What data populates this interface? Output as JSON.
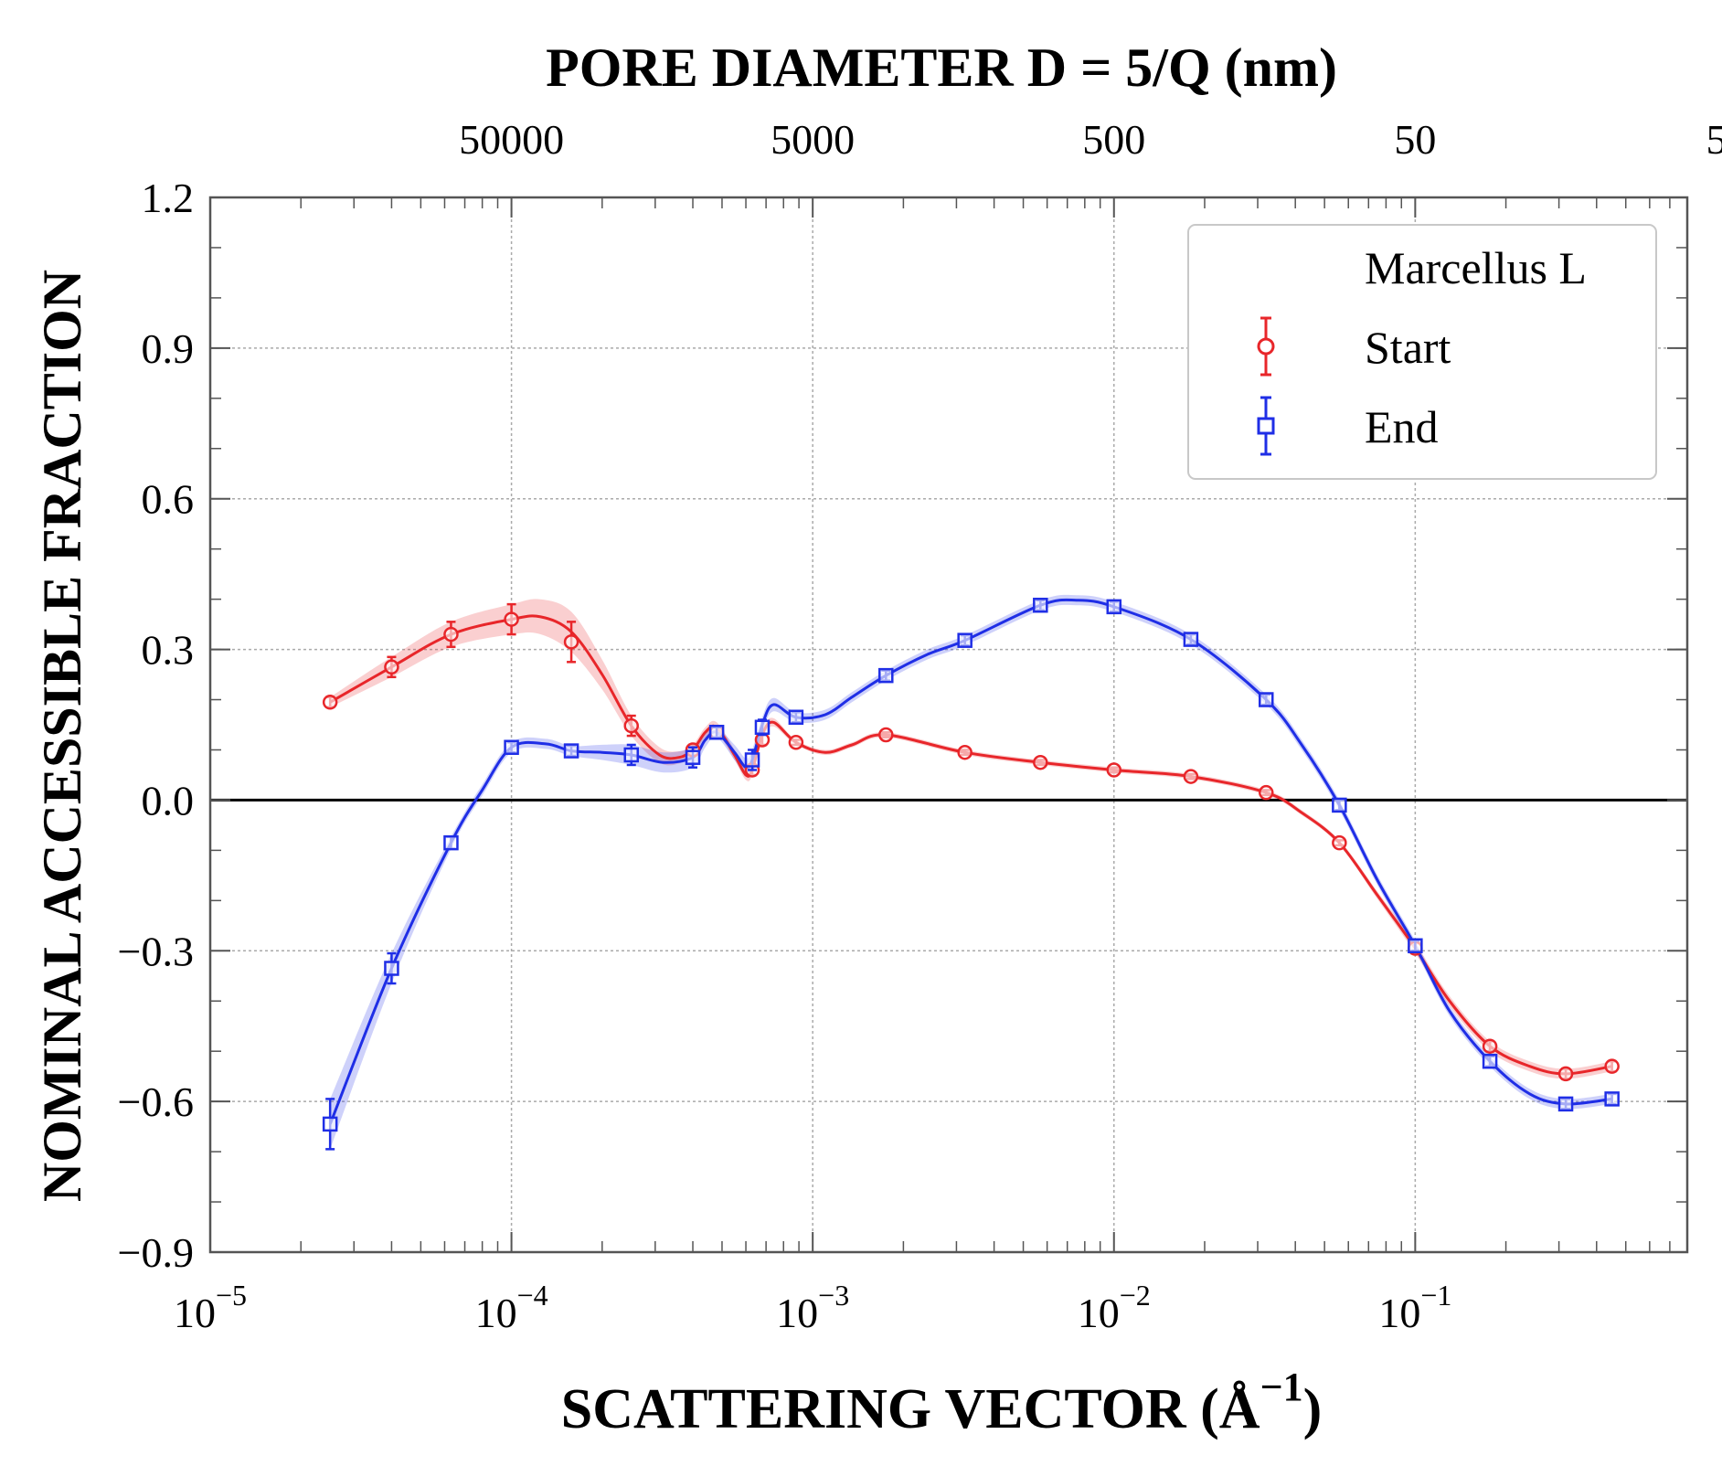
{
  "chart_data": {
    "type": "line",
    "top_title": "PORE DIAMETER D = 5/Q (nm)",
    "ylabel": "NOMINAL ACCESSIBLE FRACTION",
    "xlabel": "SCATTERING VECTOR (Å",
    "xlabel_exponent": "−1",
    "xlabel_close": ")",
    "xscale": "log",
    "xlim": [
      1e-05,
      0.8
    ],
    "ylim": [
      -0.9,
      1.2
    ],
    "x_ticks": [
      {
        "value": 1e-05,
        "base": "10",
        "exp": "−5"
      },
      {
        "value": 0.0001,
        "base": "10",
        "exp": "−4"
      },
      {
        "value": 0.001,
        "base": "10",
        "exp": "−3"
      },
      {
        "value": 0.01,
        "base": "10",
        "exp": "−2"
      },
      {
        "value": 0.1,
        "base": "10",
        "exp": "−1"
      }
    ],
    "y_ticks": [
      {
        "value": 1.2,
        "label": "1.2"
      },
      {
        "value": 0.9,
        "label": "0.9"
      },
      {
        "value": 0.6,
        "label": "0.6"
      },
      {
        "value": 0.3,
        "label": "0.3"
      },
      {
        "value": 0.0,
        "label": "0.0"
      },
      {
        "value": -0.3,
        "label": "−0.3"
      },
      {
        "value": -0.6,
        "label": "−0.6"
      },
      {
        "value": -0.9,
        "label": "−0.9"
      }
    ],
    "top_ticks": [
      {
        "q": 0.0001,
        "label": "50000"
      },
      {
        "q": 0.001,
        "label": "5000"
      },
      {
        "q": 0.01,
        "label": "500"
      },
      {
        "q": 0.1,
        "label": "50"
      },
      {
        "q": 1,
        "label": "5"
      }
    ],
    "grid": true,
    "zero_line": 0,
    "legend": {
      "position": "top-right",
      "title": "Marcellus L",
      "entries": [
        "Start",
        "End"
      ]
    },
    "series": [
      {
        "name": "Start",
        "color": "#e8262a",
        "marker": "circle",
        "x": [
          2.5e-05,
          4e-05,
          6.3e-05,
          0.0001,
          0.000158,
          0.00025,
          0.0004,
          0.00048,
          0.00063,
          0.00068,
          0.00088,
          0.00175,
          0.0032,
          0.0057,
          0.01,
          0.018,
          0.032,
          0.056,
          0.1,
          0.177,
          0.316,
          0.45
        ],
        "y": [
          0.195,
          0.265,
          0.33,
          0.36,
          0.315,
          0.148,
          0.1,
          0.135,
          0.06,
          0.12,
          0.115,
          0.13,
          0.095,
          0.075,
          0.06,
          0.047,
          0.015,
          -0.085,
          -0.295,
          -0.49,
          -0.545,
          -0.53
        ],
        "err": [
          0.01,
          0.02,
          0.025,
          0.03,
          0.04,
          0.02,
          0.01,
          0.01,
          0.01,
          0.01,
          0.005,
          0.005,
          0.005,
          0.005,
          0.005,
          0.005,
          0.005,
          0.005,
          0.01,
          0.01,
          0.01,
          0.01
        ],
        "curve_x": [
          2.5e-05,
          4e-05,
          6.3e-05,
          0.0001,
          0.000125,
          0.000158,
          0.0002,
          0.00025,
          0.00031,
          0.00036,
          0.0004,
          0.00044,
          0.00048,
          0.00055,
          0.0006,
          0.00063,
          0.00068,
          0.00074,
          0.00088,
          0.0011,
          0.00135,
          0.00175,
          0.0032,
          0.0057,
          0.01,
          0.018,
          0.032,
          0.042,
          0.056,
          0.075,
          0.1,
          0.13,
          0.177,
          0.24,
          0.316,
          0.45
        ],
        "curve_y": [
          0.195,
          0.265,
          0.33,
          0.36,
          0.365,
          0.335,
          0.25,
          0.148,
          0.09,
          0.085,
          0.1,
          0.135,
          0.145,
          0.09,
          0.05,
          0.06,
          0.13,
          0.155,
          0.115,
          0.095,
          0.11,
          0.13,
          0.095,
          0.075,
          0.06,
          0.047,
          0.015,
          -0.025,
          -0.085,
          -0.19,
          -0.295,
          -0.4,
          -0.49,
          -0.53,
          -0.545,
          -0.53
        ]
      },
      {
        "name": "End",
        "color": "#1f2ee6",
        "marker": "square",
        "x": [
          2.5e-05,
          4e-05,
          6.3e-05,
          0.0001,
          0.000158,
          0.00025,
          0.0004,
          0.00048,
          0.00063,
          0.00068,
          0.00088,
          0.00175,
          0.0032,
          0.0057,
          0.01,
          0.018,
          0.032,
          0.056,
          0.1,
          0.177,
          0.316,
          0.45
        ],
        "y": [
          -0.645,
          -0.335,
          -0.085,
          0.105,
          0.098,
          0.09,
          0.085,
          0.135,
          0.08,
          0.145,
          0.165,
          0.248,
          0.318,
          0.388,
          0.385,
          0.32,
          0.2,
          -0.01,
          -0.29,
          -0.52,
          -0.605,
          -0.595
        ],
        "err": [
          0.05,
          0.03,
          0.012,
          0.01,
          0.01,
          0.02,
          0.02,
          0.01,
          0.02,
          0.015,
          0.01,
          0.01,
          0.01,
          0.01,
          0.01,
          0.01,
          0.01,
          0.01,
          0.01,
          0.01,
          0.01,
          0.01
        ],
        "curve_x": [
          2.5e-05,
          4e-05,
          6.3e-05,
          8e-05,
          0.0001,
          0.00013,
          0.000158,
          0.0002,
          0.00025,
          0.00032,
          0.0004,
          0.00044,
          0.00048,
          0.00055,
          0.0006,
          0.00063,
          0.00068,
          0.00074,
          0.00088,
          0.0011,
          0.00135,
          0.00175,
          0.0024,
          0.0032,
          0.0057,
          0.0075,
          0.01,
          0.018,
          0.032,
          0.042,
          0.056,
          0.075,
          0.1,
          0.13,
          0.177,
          0.24,
          0.316,
          0.45
        ],
        "curve_y": [
          -0.645,
          -0.335,
          -0.085,
          0.02,
          0.105,
          0.112,
          0.098,
          0.095,
          0.09,
          0.075,
          0.085,
          0.12,
          0.135,
          0.095,
          0.065,
          0.08,
          0.15,
          0.19,
          0.165,
          0.17,
          0.205,
          0.248,
          0.29,
          0.318,
          0.388,
          0.398,
          0.385,
          0.32,
          0.2,
          0.11,
          -0.01,
          -0.16,
          -0.29,
          -0.42,
          -0.52,
          -0.585,
          -0.605,
          -0.595
        ]
      }
    ]
  }
}
